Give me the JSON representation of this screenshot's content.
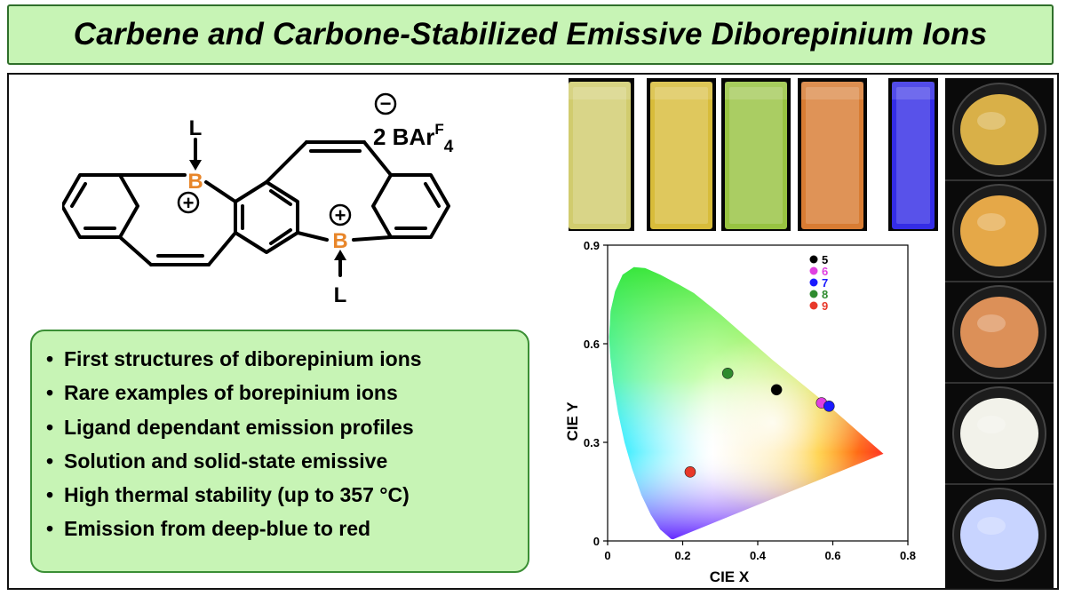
{
  "title": "Carbene and Carbone-Stabilized Emissive Diborepinium Ions",
  "structure": {
    "boron": "B",
    "plus": "+",
    "minus": "−",
    "ligand": "L",
    "counterion_prefix": "2 BAr",
    "counterion_sup": "F",
    "counterion_sub": "4"
  },
  "bullets": [
    "First structures of diborepinium ions",
    "Rare examples of borepinium ions",
    "Ligand dependant emission profiles",
    "Solution and solid-state emissive",
    "High thermal stability (up to 357 °C)",
    "Emission from deep-blue to red"
  ],
  "bullet_char": "•",
  "cuvettes": [
    {
      "color": "#e8e27a"
    },
    {
      "color": "#f0d040"
    },
    {
      "color": "#a8d848"
    },
    {
      "color": "#f08a38"
    },
    {
      "color": "#3a32ff"
    }
  ],
  "solids": [
    {
      "color": "#d9b048"
    },
    {
      "color": "#e5a848"
    },
    {
      "color": "#dc9058"
    },
    {
      "color": "#f2f2ea"
    },
    {
      "color": "#c8d4ff"
    }
  ],
  "chart_data": {
    "type": "scatter",
    "xlabel": "CIE X",
    "ylabel": "CIE Y",
    "xlim": [
      0,
      0.8
    ],
    "ylim": [
      0,
      0.9
    ],
    "xticks": [
      {
        "v": 0,
        "label": "0"
      },
      {
        "v": 0.2,
        "label": "0.2"
      },
      {
        "v": 0.4,
        "label": "0.4"
      },
      {
        "v": 0.6,
        "label": "0.6"
      },
      {
        "v": 0.8,
        "label": "0.8"
      }
    ],
    "yticks": [
      {
        "v": 0,
        "label": "0"
      },
      {
        "v": 0.3,
        "label": "0.3"
      },
      {
        "v": 0.6,
        "label": "0.6"
      },
      {
        "v": 0.9,
        "label": "0.9"
      }
    ],
    "series": [
      {
        "name": "5",
        "color": "#000000",
        "x": 0.45,
        "y": 0.46
      },
      {
        "name": "6",
        "color": "#e040e0",
        "x": 0.57,
        "y": 0.42
      },
      {
        "name": "7",
        "color": "#1a1aff",
        "x": 0.59,
        "y": 0.41
      },
      {
        "name": "8",
        "color": "#2e8b2e",
        "x": 0.32,
        "y": 0.51
      },
      {
        "name": "9",
        "color": "#e8382a",
        "x": 0.22,
        "y": 0.21
      }
    ],
    "legend_placement": "top-right",
    "grid": false
  }
}
